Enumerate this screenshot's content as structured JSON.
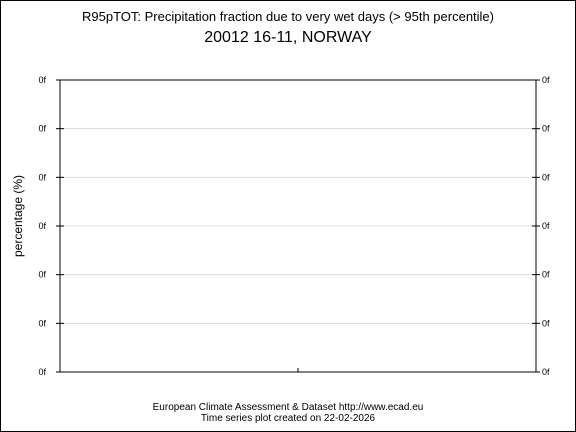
{
  "chart_data": {
    "type": "line",
    "title": "R95pTOT: Precipitation fraction due to very wet days (> 95th percentile)",
    "subtitle": "20012 16-11, NORWAY",
    "ylabel": "percentage (%)",
    "xlabel": "",
    "y_tick_labels": [
      "0f",
      "0f",
      "0f",
      "0f",
      "0f",
      "0f",
      "0f"
    ],
    "x_tick_count": 1,
    "grid": true,
    "series": [],
    "footer_line1": "European Climate Assessment & Dataset  http://www.ecad.eu",
    "footer_line2": "Time series plot created on 22-02-2026"
  }
}
